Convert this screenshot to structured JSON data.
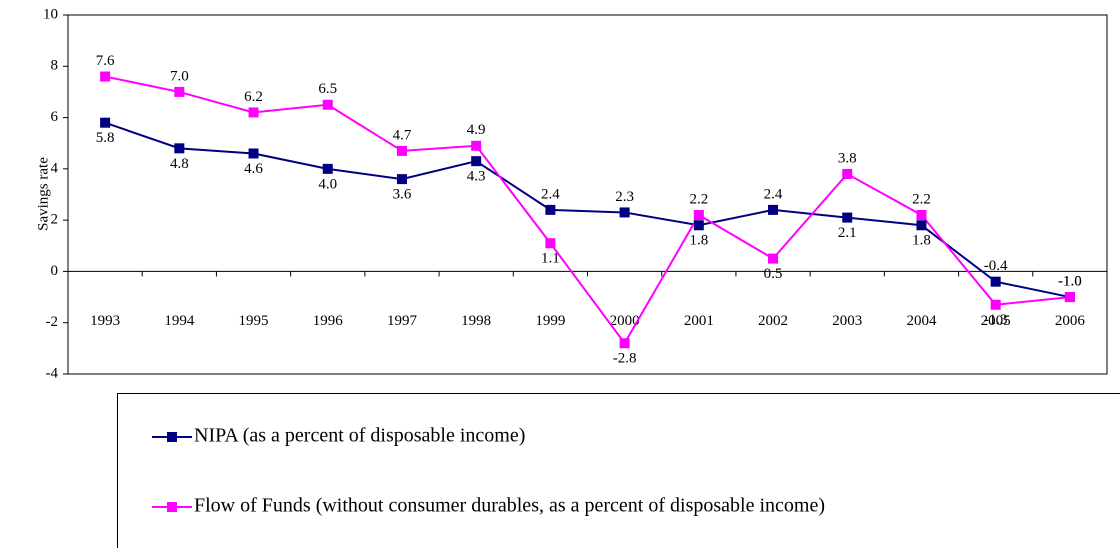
{
  "chart_data": {
    "type": "line",
    "y_label": "Savings rate",
    "categories": [
      "1993",
      "1994",
      "1995",
      "1996",
      "1997",
      "1998",
      "1999",
      "2000",
      "2001",
      "2002",
      "2003",
      "2004",
      "2005",
      "2006"
    ],
    "series": [
      {
        "name": "NIPA (as a percent of disposable income)",
        "color": "#000080",
        "values": [
          5.8,
          4.8,
          4.6,
          4.0,
          3.6,
          4.3,
          2.4,
          2.3,
          1.8,
          2.4,
          2.1,
          1.8,
          -0.4,
          -1.0
        ],
        "value_labels": [
          "5.8",
          "4.8",
          "4.6",
          "4.0",
          "3.6",
          "4.3",
          "2.4",
          "2.3",
          "1.8",
          "2.4",
          "2.1",
          "1.8",
          "-0.4",
          "-1.0"
        ]
      },
      {
        "name": "Flow of Funds (without consumer durables, as a percent of disposable income)",
        "color": "#ff00ff",
        "values": [
          7.6,
          7.0,
          6.2,
          6.5,
          4.7,
          4.9,
          1.1,
          -2.8,
          2.2,
          0.5,
          3.8,
          2.2,
          -1.3,
          -1.0
        ],
        "value_labels": [
          "7.6",
          "7.0",
          "6.2",
          "6.5",
          "4.7",
          "4.9",
          "1.1",
          "-2.8",
          "2.2",
          "0.5",
          "3.8",
          "2.2",
          "-1.3",
          "-1.0"
        ]
      }
    ],
    "ylim": [
      -4,
      10
    ],
    "yticks": [
      -4,
      -2,
      0,
      2,
      4,
      6,
      8,
      10
    ],
    "grid": false
  }
}
